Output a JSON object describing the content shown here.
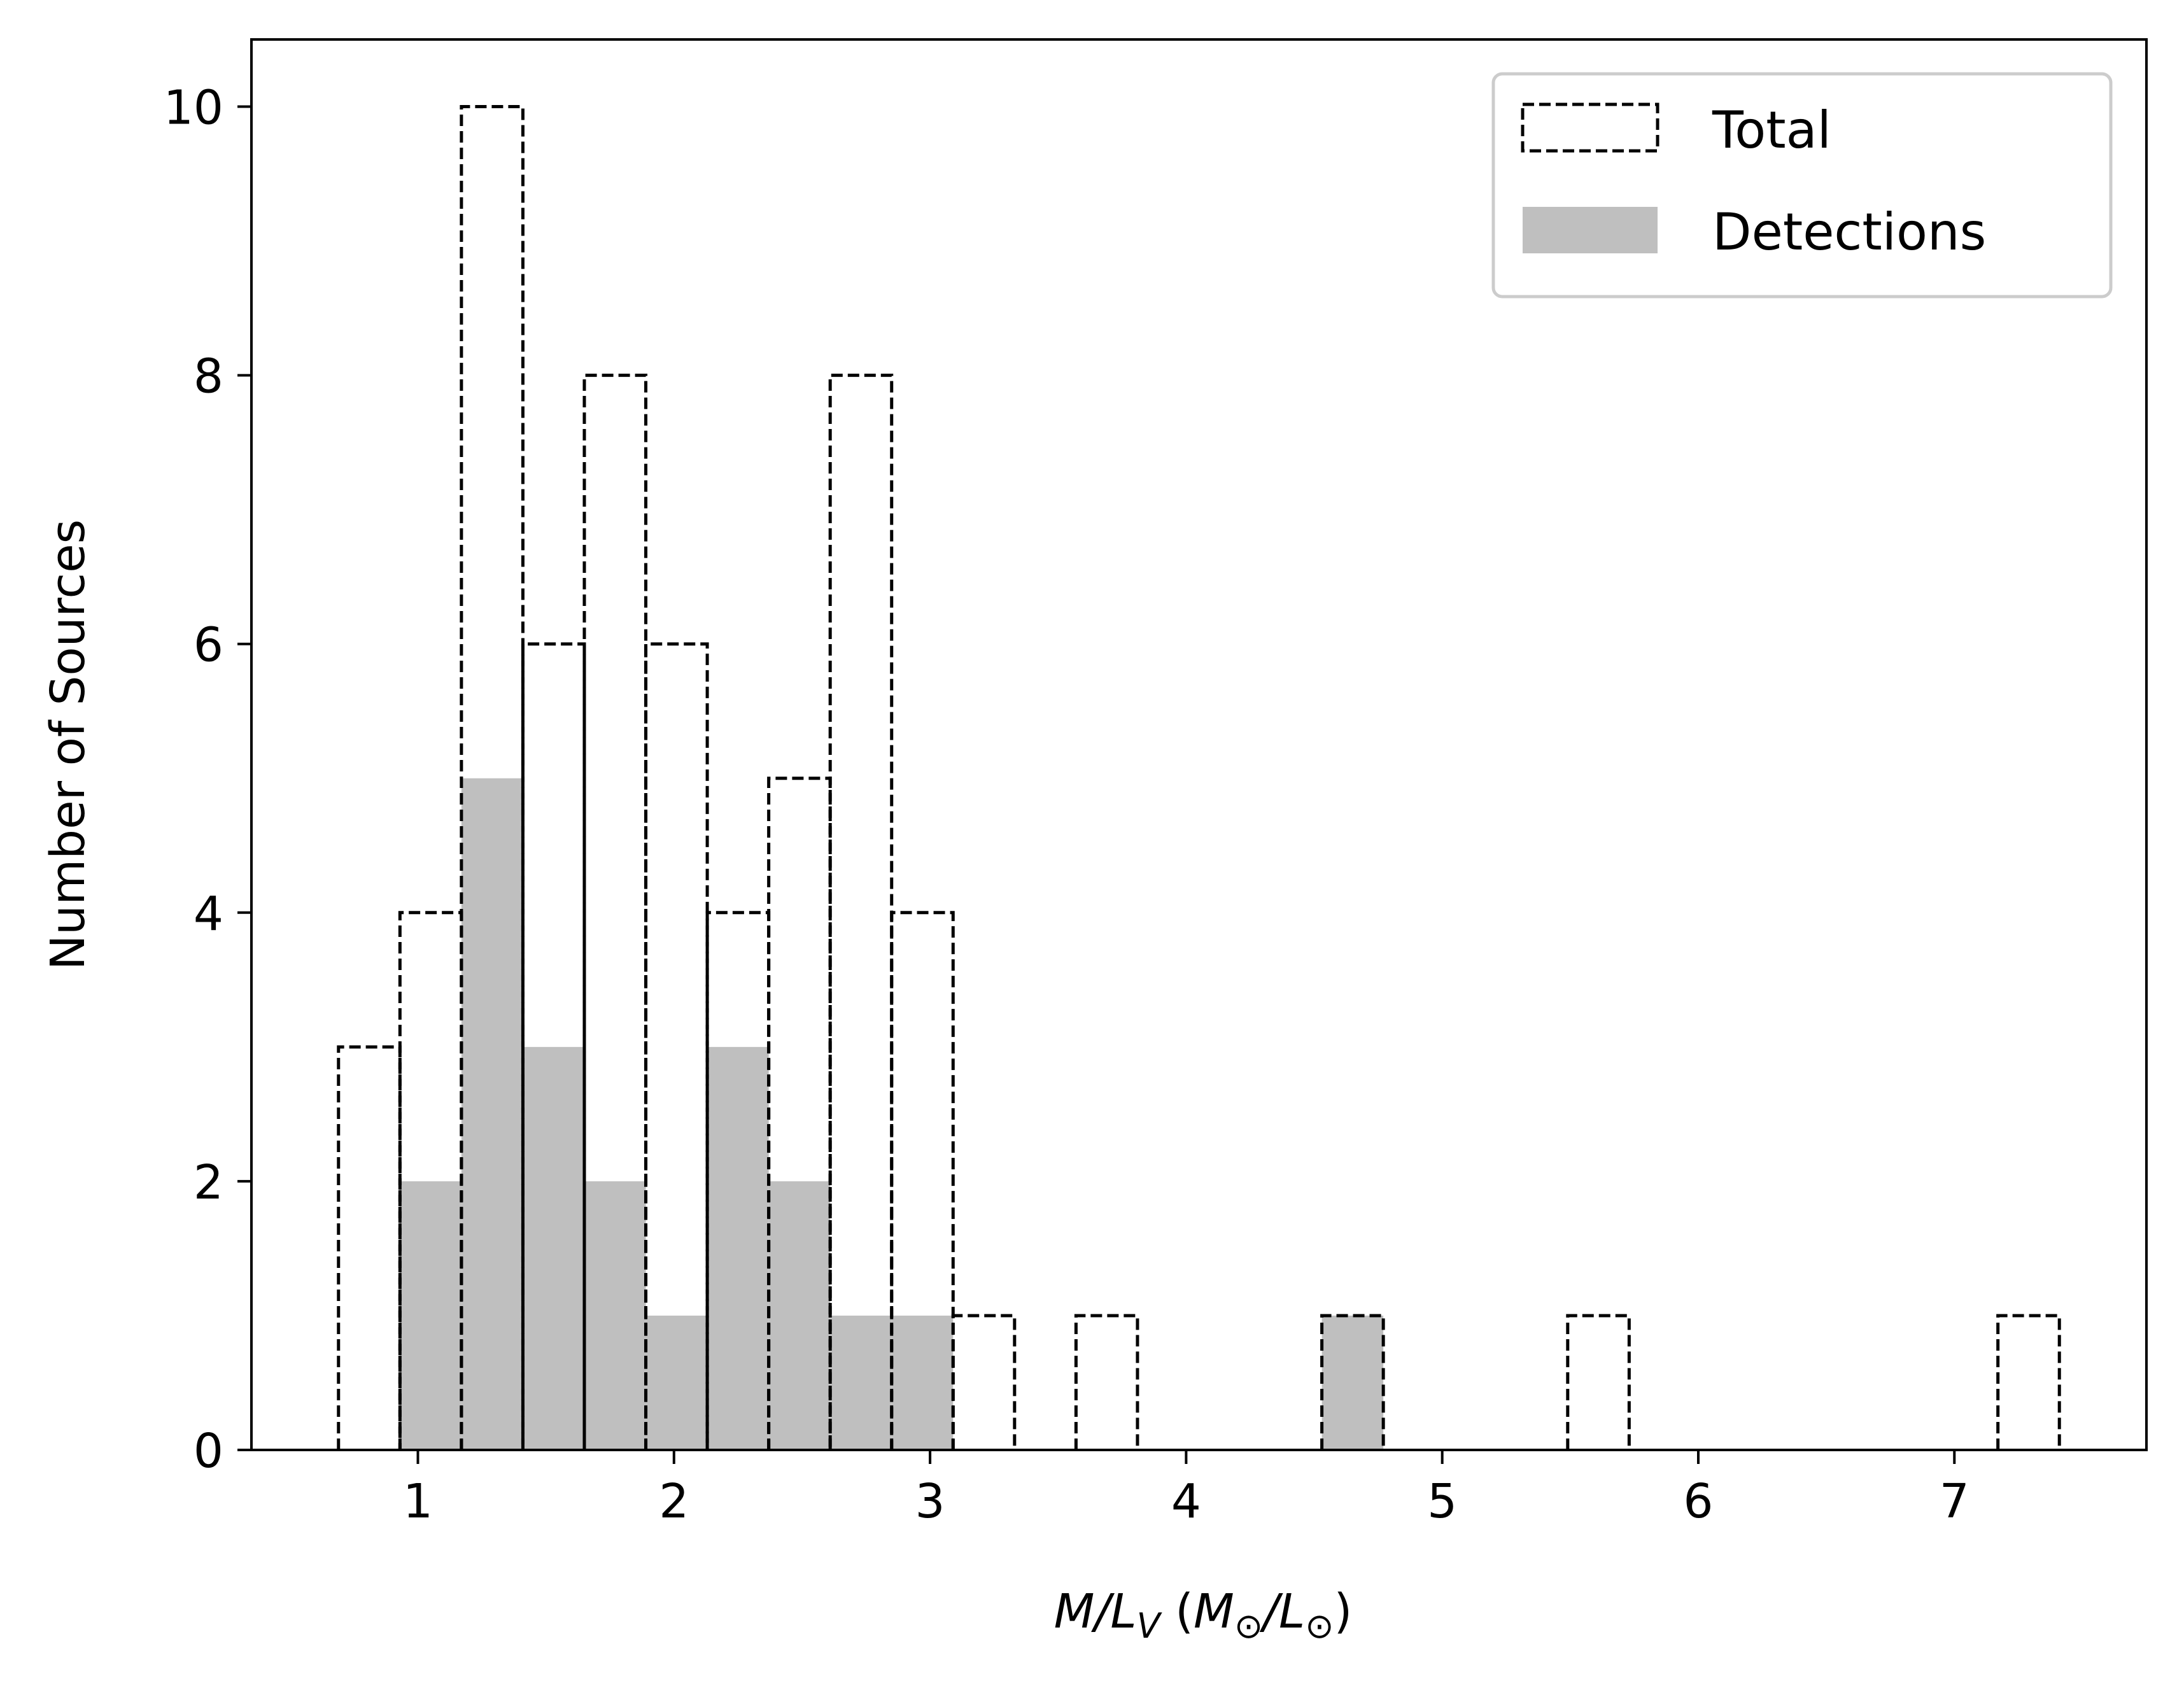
{
  "chart_data": {
    "type": "bar",
    "xlabel": "M/L_V (M⊙/L⊙)",
    "xlabel_parts": {
      "m": "M",
      "slash1": "/",
      "l": "L",
      "sub_v": "V",
      "open": " (",
      "msun": "M",
      "sun1": "⊙",
      "slash2": "/",
      "lsun": "L",
      "sun2": "⊙",
      "close": ")"
    },
    "ylabel": "Number of Sources",
    "xlim": [
      0.35,
      7.75
    ],
    "ylim": [
      0,
      10.5
    ],
    "xticks": [
      "1",
      "2",
      "3",
      "4",
      "5",
      "6",
      "7"
    ],
    "yticks": [
      "0",
      "2",
      "4",
      "6",
      "8",
      "10"
    ],
    "bin_width": 0.24,
    "legend_position": "top-right",
    "series": [
      {
        "name": "Total",
        "style": "dashed-outline",
        "color": "#000000",
        "bins": [
          {
            "x": 0.69,
            "count": 3
          },
          {
            "x": 0.93,
            "count": 4
          },
          {
            "x": 1.17,
            "count": 10
          },
          {
            "x": 1.41,
            "count": 6
          },
          {
            "x": 1.65,
            "count": 8
          },
          {
            "x": 1.89,
            "count": 6
          },
          {
            "x": 2.13,
            "count": 4
          },
          {
            "x": 2.37,
            "count": 5
          },
          {
            "x": 2.61,
            "count": 8
          },
          {
            "x": 2.85,
            "count": 4
          },
          {
            "x": 3.09,
            "count": 1
          },
          {
            "x": 3.57,
            "count": 1
          },
          {
            "x": 4.53,
            "count": 1
          },
          {
            "x": 5.49,
            "count": 1
          },
          {
            "x": 7.17,
            "count": 1
          }
        ]
      },
      {
        "name": "Detections",
        "style": "filled",
        "color": "#bfbfbf",
        "bins": [
          {
            "x": 0.93,
            "count": 2
          },
          {
            "x": 1.17,
            "count": 5
          },
          {
            "x": 1.41,
            "count": 3
          },
          {
            "x": 1.65,
            "count": 2
          },
          {
            "x": 1.89,
            "count": 1
          },
          {
            "x": 2.13,
            "count": 3
          },
          {
            "x": 2.37,
            "count": 2
          },
          {
            "x": 2.61,
            "count": 1
          },
          {
            "x": 2.85,
            "count": 1
          },
          {
            "x": 4.53,
            "count": 1
          }
        ]
      }
    ]
  }
}
